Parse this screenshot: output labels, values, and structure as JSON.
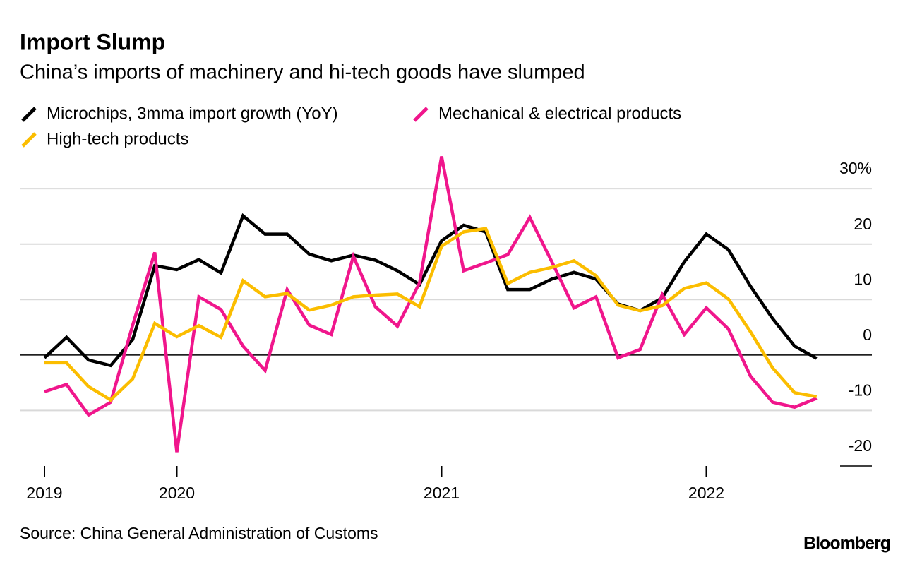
{
  "chart_data": {
    "type": "line",
    "title": "Import Slump",
    "subtitle": "China’s imports of machinery and hi-tech goods have slumped",
    "source": "Source: China General Administration of Customs",
    "brand": "Bloomberg",
    "categories": [
      "2019",
      null,
      null,
      null,
      null,
      null,
      "2020",
      null,
      null,
      null,
      null,
      null,
      null,
      null,
      null,
      null,
      null,
      null,
      "2021",
      null,
      null,
      null,
      null,
      null,
      null,
      null,
      null,
      null,
      null,
      null,
      "2022",
      null,
      null,
      null,
      null,
      null
    ],
    "series": [
      {
        "name": "Microchips, 3mma import growth (YoY)",
        "color": "#000000",
        "values": [
          -0.5,
          3.2,
          -0.9,
          -1.9,
          2.8,
          16.1,
          15.4,
          17.2,
          14.8,
          25.1,
          21.8,
          21.8,
          18.2,
          17.0,
          18.0,
          17.1,
          15.2,
          12.7,
          20.6,
          23.4,
          22.2,
          11.8,
          11.8,
          13.7,
          14.9,
          13.7,
          9.2,
          8.0,
          10.3,
          16.8,
          21.8,
          19.0,
          12.4,
          6.6,
          1.6,
          -0.6
        ]
      },
      {
        "name": "Mechanical & electrical products",
        "color": "#f0168c",
        "values": [
          -6.6,
          -5.3,
          -10.8,
          -8.5,
          5.4,
          18.5,
          -17.5,
          10.5,
          8.2,
          1.6,
          -2.8,
          11.8,
          5.4,
          3.7,
          17.8,
          8.7,
          5.2,
          13.0,
          35.8,
          15.2,
          16.6,
          18.1,
          24.8,
          16.8,
          8.5,
          10.5,
          -0.5,
          1.0,
          10.9,
          3.7,
          8.5,
          4.7,
          -3.8,
          -8.5,
          -9.4,
          -7.8
        ]
      },
      {
        "name": "High-tech products",
        "color": "#fbbd00",
        "values": [
          -1.4,
          -1.4,
          -5.7,
          -8.1,
          -4.3,
          5.7,
          3.3,
          5.3,
          3.2,
          13.4,
          10.5,
          11.1,
          8.1,
          9.0,
          10.5,
          10.8,
          11.0,
          8.7,
          19.6,
          22.2,
          22.8,
          12.9,
          14.9,
          15.8,
          17.0,
          14.3,
          9.0,
          8.0,
          8.9,
          12.0,
          13.0,
          10.1,
          4.2,
          -2.3,
          -6.8,
          -7.5
        ]
      }
    ],
    "ylim": [
      -20,
      36
    ],
    "yticks": [
      -20,
      -10,
      0,
      10,
      20,
      {
        "value": 30,
        "label": "30%"
      }
    ],
    "grid": true
  }
}
